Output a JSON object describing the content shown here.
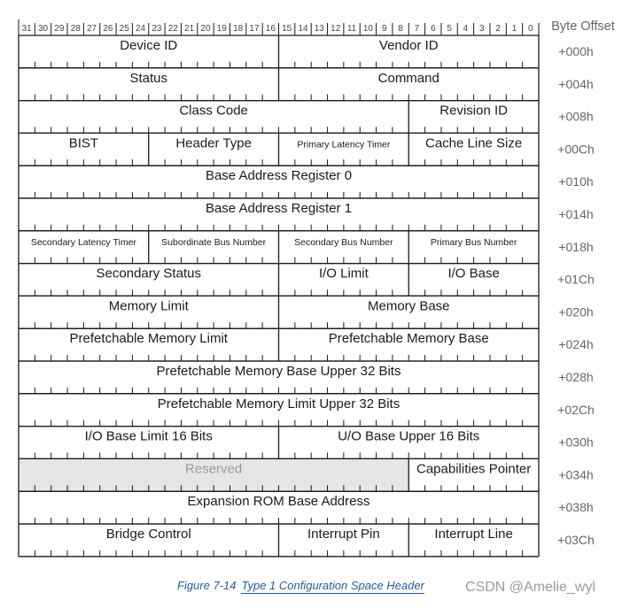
{
  "header": {
    "byte_offset_label": "Byte Offset",
    "bits": [
      "31",
      "30",
      "29",
      "28",
      "27",
      "26",
      "25",
      "24",
      "23",
      "22",
      "21",
      "20",
      "19",
      "18",
      "17",
      "16",
      "15",
      "14",
      "13",
      "12",
      "11",
      "10",
      "9",
      "8",
      "7",
      "6",
      "5",
      "4",
      "3",
      "2",
      "1",
      "0"
    ]
  },
  "rows": [
    {
      "offset": "+000h",
      "fields": [
        {
          "label": "Device ID",
          "hi": 31,
          "lo": 16
        },
        {
          "label": "Vendor ID",
          "hi": 15,
          "lo": 0
        }
      ]
    },
    {
      "offset": "+004h",
      "fields": [
        {
          "label": "Status",
          "hi": 31,
          "lo": 16
        },
        {
          "label": "Command",
          "hi": 15,
          "lo": 0
        }
      ]
    },
    {
      "offset": "+008h",
      "fields": [
        {
          "label": "Class Code",
          "hi": 31,
          "lo": 8
        },
        {
          "label": "Revision ID",
          "hi": 7,
          "lo": 0
        }
      ]
    },
    {
      "offset": "+00Ch",
      "fields": [
        {
          "label": "BIST",
          "hi": 31,
          "lo": 24
        },
        {
          "label": "Header Type",
          "hi": 23,
          "lo": 16
        },
        {
          "label": "Primary Latency Timer",
          "hi": 15,
          "lo": 8,
          "small": true
        },
        {
          "label": "Cache Line Size",
          "hi": 7,
          "lo": 0
        }
      ]
    },
    {
      "offset": "+010h",
      "fields": [
        {
          "label": "Base Address Register 0",
          "hi": 31,
          "lo": 0
        }
      ]
    },
    {
      "offset": "+014h",
      "fields": [
        {
          "label": "Base Address Register 1",
          "hi": 31,
          "lo": 0
        }
      ]
    },
    {
      "offset": "+018h",
      "fields": [
        {
          "label": "Secondary Latency Timer",
          "hi": 31,
          "lo": 24,
          "small": true
        },
        {
          "label": "Subordinate Bus Number",
          "hi": 23,
          "lo": 16,
          "small": true
        },
        {
          "label": "Secondary Bus Number",
          "hi": 15,
          "lo": 8,
          "small": true
        },
        {
          "label": "Primary Bus Number",
          "hi": 7,
          "lo": 0,
          "small": true
        }
      ]
    },
    {
      "offset": "+01Ch",
      "fields": [
        {
          "label": "Secondary Status",
          "hi": 31,
          "lo": 16
        },
        {
          "label": "I/O Limit",
          "hi": 15,
          "lo": 8
        },
        {
          "label": "I/O Base",
          "hi": 7,
          "lo": 0
        }
      ]
    },
    {
      "offset": "+020h",
      "fields": [
        {
          "label": "Memory Limit",
          "hi": 31,
          "lo": 16
        },
        {
          "label": "Memory Base",
          "hi": 15,
          "lo": 0
        }
      ]
    },
    {
      "offset": "+024h",
      "fields": [
        {
          "label": "Prefetchable Memory Limit",
          "hi": 31,
          "lo": 16
        },
        {
          "label": "Prefetchable Memory Base",
          "hi": 15,
          "lo": 0
        }
      ]
    },
    {
      "offset": "+028h",
      "fields": [
        {
          "label": "Prefetchable Memory Base Upper 32 Bits",
          "hi": 31,
          "lo": 0
        }
      ]
    },
    {
      "offset": "+02Ch",
      "fields": [
        {
          "label": "Prefetchable Memory Limit Upper 32 Bits",
          "hi": 31,
          "lo": 0
        }
      ]
    },
    {
      "offset": "+030h",
      "fields": [
        {
          "label": "I/O Base Limit 16 Bits",
          "hi": 31,
          "lo": 16
        },
        {
          "label": "U/O Base Upper 16 Bits",
          "hi": 15,
          "lo": 0
        }
      ]
    },
    {
      "offset": "+034h",
      "fields": [
        {
          "label": "Reserved",
          "hi": 31,
          "lo": 8,
          "reserved": true
        },
        {
          "label": "Capabilities Pointer",
          "hi": 7,
          "lo": 0
        }
      ]
    },
    {
      "offset": "+038h",
      "fields": [
        {
          "label": "Expansion ROM Base Address",
          "hi": 31,
          "lo": 0
        }
      ]
    },
    {
      "offset": "+03Ch",
      "fields": [
        {
          "label": "Bridge Control",
          "hi": 31,
          "lo": 16
        },
        {
          "label": "Interrupt Pin",
          "hi": 15,
          "lo": 8
        },
        {
          "label": "Interrupt Line",
          "hi": 7,
          "lo": 0
        }
      ]
    }
  ],
  "caption": {
    "figure": "Figure 7-14",
    "title": "Type 1 Configuration Space Header"
  },
  "watermark": "CSDN @Amelie_wyl",
  "colors": {
    "line": "#1a1a1a",
    "reserved_fill": "#e6e6e6",
    "reserved_text": "#9a9a9a",
    "offset_text": "#666666",
    "caption": "#2a5a9a"
  }
}
